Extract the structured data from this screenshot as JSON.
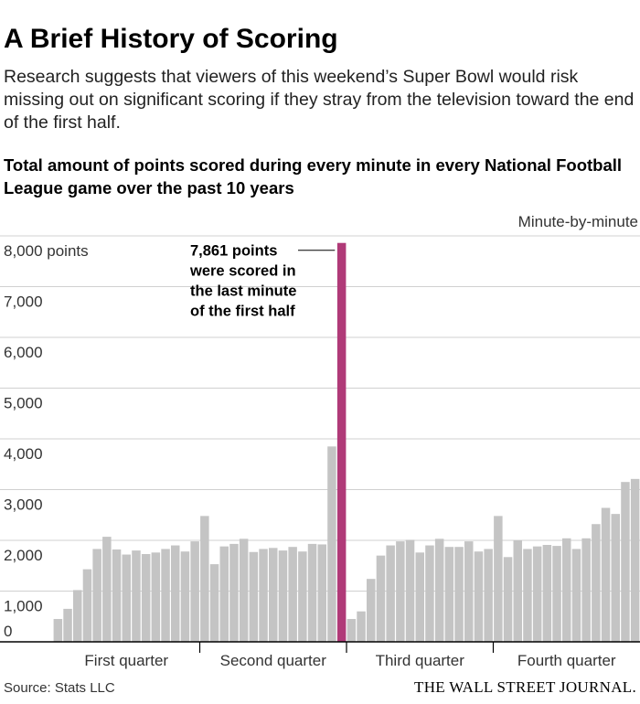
{
  "header": {
    "title": "A Brief History of Scoring",
    "dek": "Research suggests that viewers of this weekend’s Super Bowl would risk missing out on significant scoring if they stray from the television toward the end of the first half."
  },
  "footer": {
    "source": "Source: Stats LLC",
    "publisher": "THE WALL STREET JOURNAL."
  },
  "colors": {
    "bar": "#c4c4c4",
    "highlight": "#b03a78",
    "grid": "#d0d0d0",
    "axis": "#000000",
    "text": "#333333"
  },
  "chart_data": {
    "type": "bar",
    "title": "Total amount of points scored during every minute in every National Football League game over the past 10 years",
    "ylabel": "8,000 points",
    "legend": "Minute-by-minute",
    "ylim": [
      0,
      8000
    ],
    "yticks": [
      0,
      1000,
      2000,
      3000,
      4000,
      5000,
      6000,
      7000,
      8000
    ],
    "ytick_labels": [
      "0",
      "1,000",
      "2,000",
      "3,000",
      "4,000",
      "5,000",
      "6,000",
      "7,000",
      "8,000 points"
    ],
    "grid": true,
    "x": [
      1,
      2,
      3,
      4,
      5,
      6,
      7,
      8,
      9,
      10,
      11,
      12,
      13,
      14,
      15,
      16,
      17,
      18,
      19,
      20,
      21,
      22,
      23,
      24,
      25,
      26,
      27,
      28,
      29,
      30,
      31,
      32,
      33,
      34,
      35,
      36,
      37,
      38,
      39,
      40,
      41,
      42,
      43,
      44,
      45,
      46,
      47,
      48,
      49,
      50,
      51,
      52,
      53,
      54,
      55,
      56,
      57,
      58,
      59,
      60
    ],
    "quarters": [
      "First quarter",
      "Second quarter",
      "Third quarter",
      "Fourth quarter"
    ],
    "values": [
      450,
      650,
      1020,
      1430,
      1830,
      2070,
      1820,
      1720,
      1800,
      1730,
      1760,
      1830,
      1900,
      1780,
      1980,
      2480,
      1530,
      1880,
      1930,
      2030,
      1770,
      1830,
      1850,
      1800,
      1870,
      1780,
      1930,
      1920,
      3850,
      7861,
      450,
      600,
      1240,
      1700,
      1900,
      1980,
      2010,
      1760,
      1900,
      2030,
      1870,
      1870,
      1980,
      1780,
      1830,
      2480,
      1670,
      2000,
      1830,
      1880,
      1910,
      1890,
      2040,
      1830,
      2040,
      2320,
      2640,
      2520,
      3150,
      3210
    ],
    "highlight_index": 29,
    "annotation": [
      "7,861 points",
      "were scored in",
      "the last minute",
      "of the first half"
    ]
  }
}
